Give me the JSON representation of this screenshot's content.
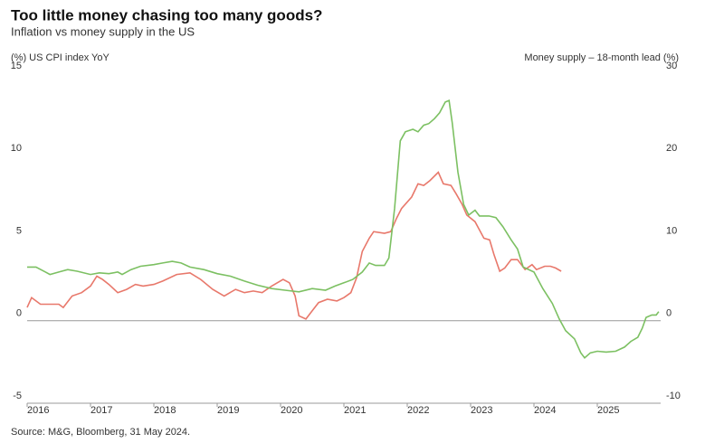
{
  "chart_data": {
    "type": "line",
    "title": "Too little money chasing too many goods?",
    "subtitle": "Inflation vs money supply in the US",
    "ylabel": "(%) US CPI index YoY",
    "y2label": "Money supply – 18-month lead (%)",
    "source": "Source: M&G, Bloomberg, 31 May 2024.",
    "xlim": [
      2016,
      2026
    ],
    "xticks": [
      2016,
      2017,
      2018,
      2019,
      2020,
      2021,
      2022,
      2023,
      2024,
      2025
    ],
    "ylim": [
      -5,
      15
    ],
    "yticks": [
      -5,
      0,
      5,
      10,
      15
    ],
    "y2lim": [
      -10,
      30
    ],
    "y2ticks": [
      -10,
      0,
      10,
      20,
      30
    ],
    "zero_line": true,
    "series": [
      {
        "name": "(%) US CPI index YoY",
        "color": "#e8786b",
        "x": [
          2016.0,
          2016.07,
          2016.21,
          2016.36,
          2016.5,
          2016.57,
          2016.71,
          2016.86,
          2017.0,
          2017.1,
          2017.19,
          2017.29,
          2017.43,
          2017.57,
          2017.71,
          2017.83,
          2018.0,
          2018.14,
          2018.36,
          2018.57,
          2018.74,
          2018.93,
          2019.11,
          2019.29,
          2019.43,
          2019.57,
          2019.71,
          2019.86,
          2020.04,
          2020.14,
          2020.23,
          2020.29,
          2020.4,
          2020.5,
          2020.6,
          2020.74,
          2020.89,
          2021.0,
          2021.11,
          2021.2,
          2021.29,
          2021.4,
          2021.47,
          2021.64,
          2021.74,
          2021.83,
          2021.91,
          2022.07,
          2022.17,
          2022.26,
          2022.36,
          2022.49,
          2022.57,
          2022.69,
          2022.77,
          2022.86,
          2022.94,
          2023.07,
          2023.21,
          2023.3,
          2023.37,
          2023.46,
          2023.54,
          2023.64,
          2023.74,
          2023.86,
          2023.97,
          2024.04,
          2024.17,
          2024.26,
          2024.34,
          2024.43
        ],
        "values": [
          0.8,
          1.4,
          1.0,
          1.0,
          1.0,
          0.8,
          1.5,
          1.7,
          2.1,
          2.7,
          2.5,
          2.2,
          1.7,
          1.9,
          2.2,
          2.1,
          2.2,
          2.4,
          2.8,
          2.9,
          2.5,
          1.9,
          1.5,
          1.9,
          1.7,
          1.8,
          1.7,
          2.1,
          2.5,
          2.3,
          1.5,
          0.3,
          0.1,
          0.6,
          1.1,
          1.3,
          1.2,
          1.4,
          1.7,
          2.6,
          4.2,
          5.0,
          5.4,
          5.3,
          5.4,
          6.2,
          6.8,
          7.5,
          8.3,
          8.2,
          8.5,
          9.0,
          8.3,
          8.2,
          7.7,
          7.1,
          6.4,
          6.0,
          5.0,
          4.9,
          4.0,
          3.0,
          3.2,
          3.7,
          3.7,
          3.1,
          3.4,
          3.1,
          3.3,
          3.3,
          3.2,
          3.0
        ]
      },
      {
        "name": "Money supply – 18-month lead (%)",
        "color": "#7cc062",
        "axis": "y2",
        "x": [
          2016.0,
          2016.14,
          2016.29,
          2016.36,
          2016.5,
          2016.64,
          2016.79,
          2017.0,
          2017.14,
          2017.29,
          2017.43,
          2017.5,
          2017.64,
          2017.79,
          2018.0,
          2018.14,
          2018.29,
          2018.43,
          2018.57,
          2018.79,
          2019.0,
          2019.21,
          2019.43,
          2019.64,
          2019.86,
          2020.07,
          2020.29,
          2020.5,
          2020.71,
          2020.86,
          2021.0,
          2021.14,
          2021.29,
          2021.4,
          2021.5,
          2021.64,
          2021.71,
          2021.8,
          2021.89,
          2021.97,
          2022.09,
          2022.17,
          2022.26,
          2022.34,
          2022.43,
          2022.51,
          2022.6,
          2022.66,
          2022.71,
          2022.8,
          2022.89,
          2022.97,
          2023.07,
          2023.14,
          2023.29,
          2023.4,
          2023.51,
          2023.64,
          2023.74,
          2023.83,
          2024.0,
          2024.14,
          2024.29,
          2024.4,
          2024.5,
          2024.64,
          2024.74,
          2024.8,
          2024.89,
          2025.0,
          2025.14,
          2025.29,
          2025.43,
          2025.53,
          2025.64,
          2025.71,
          2025.77,
          2025.86,
          2025.93,
          2025.97
        ],
        "values": [
          6.5,
          6.5,
          5.9,
          5.6,
          5.9,
          6.2,
          6.0,
          5.6,
          5.8,
          5.7,
          5.9,
          5.6,
          6.2,
          6.6,
          6.8,
          7.0,
          7.2,
          7.0,
          6.5,
          6.2,
          5.7,
          5.4,
          4.8,
          4.3,
          3.9,
          3.7,
          3.5,
          3.9,
          3.7,
          4.2,
          4.6,
          5.0,
          5.9,
          7.0,
          6.7,
          6.7,
          7.6,
          13.6,
          21.8,
          22.9,
          23.2,
          22.9,
          23.7,
          23.9,
          24.5,
          25.2,
          26.5,
          26.7,
          24.0,
          18.0,
          14.1,
          12.8,
          13.4,
          12.7,
          12.7,
          12.5,
          11.4,
          9.8,
          8.7,
          6.5,
          5.9,
          3.9,
          2.1,
          0.2,
          -1.2,
          -2.2,
          -3.9,
          -4.5,
          -3.9,
          -3.7,
          -3.8,
          -3.7,
          -3.2,
          -2.5,
          -2.0,
          -0.9,
          0.4,
          0.7,
          0.7,
          1.1
        ]
      }
    ]
  }
}
